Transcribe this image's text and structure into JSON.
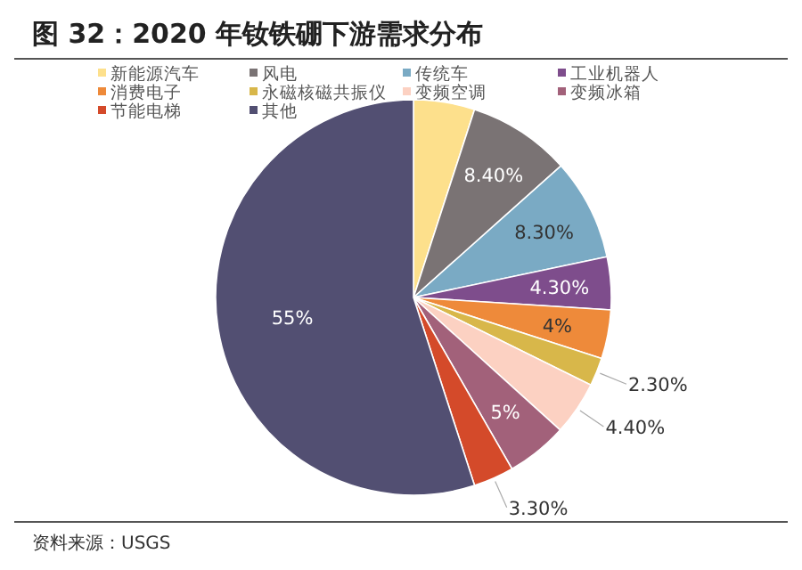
{
  "chart_data": {
    "type": "pie",
    "title": "图 32：2020 年钕铁硼下游需求分布",
    "categories": [
      "新能源汽车",
      "风电",
      "传统车",
      "工业机器人",
      "消费电子",
      "永磁核磁共振仪",
      "变频空调",
      "变频冰箱",
      "节能电梯",
      "其他"
    ],
    "values": [
      5,
      8.4,
      8.3,
      4.3,
      4,
      2.3,
      4.4,
      5,
      3.3,
      55
    ],
    "colors": [
      "#fde08c",
      "#7a7374",
      "#7aaac4",
      "#7e4d8c",
      "#ee8a3a",
      "#d8b74a",
      "#fcd1c2",
      "#a2617a",
      "#d44a2a",
      "#524f72"
    ],
    "value_labels": [
      null,
      "8.40%",
      "8.30%",
      "4.30%",
      "4%",
      "2.30%",
      "4.40%",
      "5%",
      "3.30%",
      "55%"
    ],
    "legend": "top",
    "annotations": [
      "资料来源：USGS"
    ]
  }
}
